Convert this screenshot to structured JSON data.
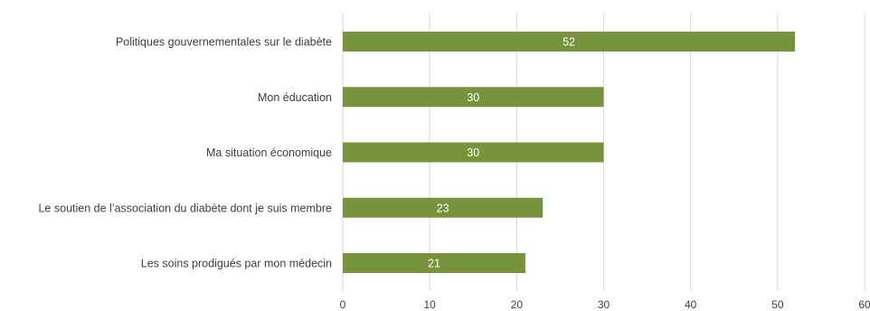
{
  "chart_data": {
    "type": "bar",
    "orientation": "horizontal",
    "categories": [
      "Politiques gouvernementales sur le diabète",
      "Mon éducation",
      "Ma situation économique",
      "Le soutien de l’association du diabète dont je suis membre",
      "Les soins prodigués par mon médecin"
    ],
    "values": [
      52,
      30,
      30,
      23,
      21
    ],
    "data_labels": [
      "52",
      "30",
      "30",
      "23",
      "21"
    ],
    "xlim": [
      0,
      60
    ],
    "x_ticks": [
      "0",
      "10",
      "20",
      "30",
      "40",
      "50",
      "60"
    ],
    "grid": "vertical",
    "legend": "none",
    "colors": {
      "bar": "#77933c",
      "grid": "#d9d9d9",
      "text": "#404040",
      "data_label": "#ffffff"
    }
  }
}
